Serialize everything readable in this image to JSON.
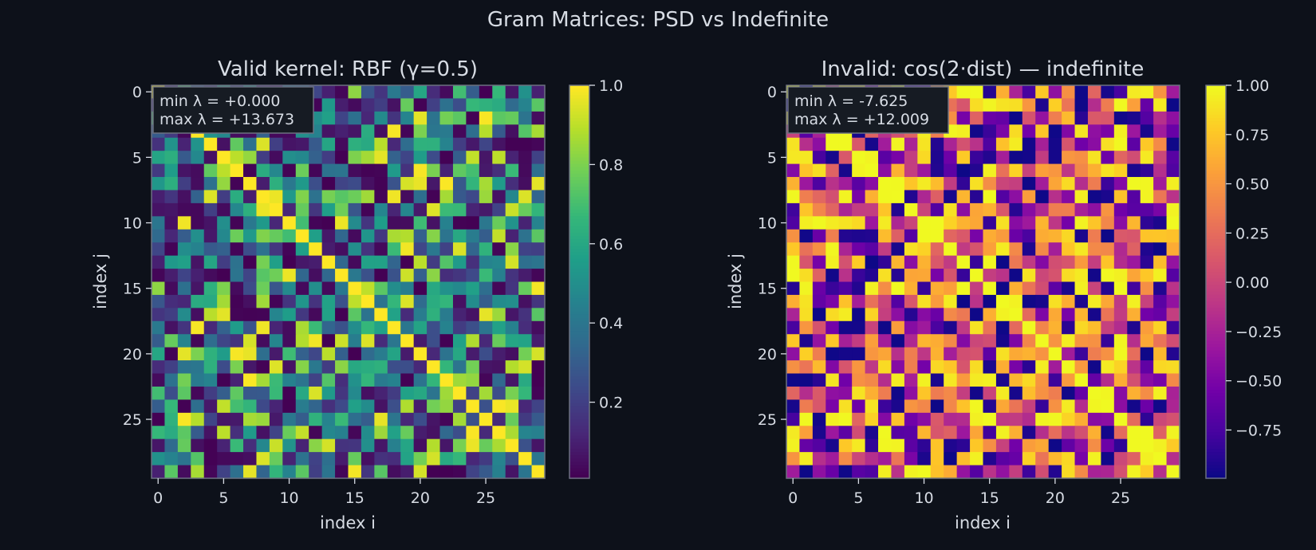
{
  "figure": {
    "title": "Gram Matrices: PSD vs Indefinite",
    "background": "#0d111a",
    "text_color": "#d7dce4"
  },
  "chart_data": [
    {
      "type": "heatmap",
      "title": "Valid kernel: RBF (γ=0.5)",
      "xlabel": "index i",
      "ylabel": "index j",
      "size": 30,
      "colormap": "viridis",
      "x_ticks": [
        0,
        5,
        10,
        15,
        20,
        25
      ],
      "y_ticks": [
        0,
        5,
        10,
        15,
        20,
        25
      ],
      "x_tick_labels": [
        "0",
        "5",
        "10",
        "15",
        "20",
        "25"
      ],
      "y_tick_labels": [
        "0",
        "5",
        "10",
        "15",
        "20",
        "25"
      ],
      "clim": [
        0.0,
        1.0
      ],
      "colorbar_ticks": [
        0.2,
        0.4,
        0.6,
        0.8,
        1.0
      ],
      "colorbar_tick_labels": [
        "0.2",
        "0.4",
        "0.6",
        "0.8",
        "1.0"
      ],
      "annotation": {
        "line1": "min λ = +0.000",
        "line2": "max λ = +13.673",
        "color": "#7fc4f2"
      },
      "diagonal": 1.0,
      "seed": 17
    },
    {
      "type": "heatmap",
      "title": "Invalid: cos(2·dist) — indefinite",
      "xlabel": "index i",
      "ylabel": "index j",
      "size": 30,
      "colormap": "plasma",
      "x_ticks": [
        0,
        5,
        10,
        15,
        20,
        25
      ],
      "y_ticks": [
        0,
        5,
        10,
        15,
        20,
        25
      ],
      "x_tick_labels": [
        "0",
        "5",
        "10",
        "15",
        "20",
        "25"
      ],
      "y_tick_labels": [
        "0",
        "5",
        "10",
        "15",
        "20",
        "25"
      ],
      "clim": [
        -1.0,
        1.0
      ],
      "colorbar_ticks": [
        -0.75,
        -0.5,
        -0.25,
        0.0,
        0.25,
        0.5,
        0.75,
        1.0
      ],
      "colorbar_tick_labels": [
        "−0.75",
        "−0.50",
        "−0.25",
        "0.00",
        "0.25",
        "0.50",
        "0.75",
        "1.00"
      ],
      "annotation": {
        "line1": "min λ = -7.625",
        "line2": "max λ = +12.009",
        "color": "#f47a68"
      },
      "diagonal": 1.0,
      "seed": 91
    }
  ]
}
